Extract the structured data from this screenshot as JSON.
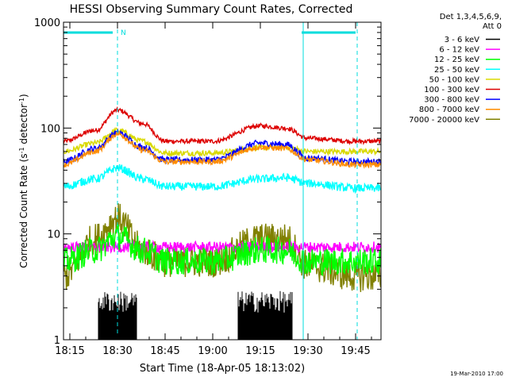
{
  "chart_data": {
    "type": "line",
    "title": "HESSI Observing Summary Count Rates, Corrected",
    "xlabel": "Start Time (18-Apr-05 18:13:02)",
    "ylabel_parts": [
      "Corrected Count Rate (s",
      "-1",
      " detector",
      "-1",
      ")"
    ],
    "yscale": "log",
    "ylim": [
      1,
      1000
    ],
    "xlim_minutes": [
      0,
      100
    ],
    "x_ticks": [
      {
        "label": "18:15",
        "min": 2
      },
      {
        "label": "18:30",
        "min": 17
      },
      {
        "label": "18:45",
        "min": 32
      },
      {
        "label": "19:00",
        "min": 47
      },
      {
        "label": "19:15",
        "min": 62
      },
      {
        "label": "19:30",
        "min": 77
      },
      {
        "label": "19:45",
        "min": 92
      }
    ],
    "y_ticks": [
      {
        "label": "1",
        "value": 1
      },
      {
        "label": "10",
        "value": 10
      },
      {
        "label": "100",
        "value": 100
      },
      {
        "label": "1000",
        "value": 1000
      }
    ],
    "legend_header": [
      "Det 1,3,4,5,6,9,",
      "Att 0"
    ],
    "legend_position": "right",
    "series": [
      {
        "name": "3 - 6 keV",
        "color": "#000000"
      },
      {
        "name": "6 - 12 keV",
        "color": "#ff00ff"
      },
      {
        "name": "12 - 25 keV",
        "color": "#00ff00"
      },
      {
        "name": "25 - 50 keV",
        "color": "#00ffff"
      },
      {
        "name": "50 - 100 keV",
        "color": "#d9d900"
      },
      {
        "name": "100 - 300 keV",
        "color": "#dd0000"
      },
      {
        "name": "300 - 800 keV",
        "color": "#0000ff"
      },
      {
        "name": "800 - 7000 keV",
        "color": "#ff8c00"
      },
      {
        "name": "7000 - 20000 keV",
        "color": "#808000"
      }
    ],
    "series_profiles": [
      {
        "name": "100 - 300 keV",
        "points": [
          [
            0,
            75
          ],
          [
            10,
            95
          ],
          [
            17,
            148
          ],
          [
            25,
            110
          ],
          [
            32,
            75
          ],
          [
            47,
            75
          ],
          [
            62,
            105
          ],
          [
            70,
            100
          ],
          [
            77,
            80
          ],
          [
            92,
            75
          ],
          [
            100,
            75
          ]
        ]
      },
      {
        "name": "50 - 100 keV",
        "points": [
          [
            0,
            60
          ],
          [
            10,
            72
          ],
          [
            17,
            95
          ],
          [
            25,
            75
          ],
          [
            32,
            58
          ],
          [
            47,
            58
          ],
          [
            62,
            65
          ],
          [
            70,
            66
          ],
          [
            77,
            60
          ],
          [
            92,
            60
          ],
          [
            100,
            60
          ]
        ]
      },
      {
        "name": "300 - 800 keV",
        "points": [
          [
            0,
            48
          ],
          [
            10,
            64
          ],
          [
            17,
            90
          ],
          [
            25,
            66
          ],
          [
            32,
            50
          ],
          [
            47,
            50
          ],
          [
            62,
            72
          ],
          [
            70,
            70
          ],
          [
            77,
            52
          ],
          [
            92,
            48
          ],
          [
            100,
            48
          ]
        ]
      },
      {
        "name": "800 - 7000 keV",
        "points": [
          [
            0,
            45
          ],
          [
            10,
            60
          ],
          [
            17,
            88
          ],
          [
            25,
            62
          ],
          [
            32,
            48
          ],
          [
            47,
            48
          ],
          [
            62,
            66
          ],
          [
            70,
            64
          ],
          [
            77,
            50
          ],
          [
            92,
            45
          ],
          [
            100,
            45
          ]
        ]
      },
      {
        "name": "25 - 50 keV",
        "points": [
          [
            0,
            28
          ],
          [
            10,
            33
          ],
          [
            17,
            42
          ],
          [
            25,
            33
          ],
          [
            32,
            28
          ],
          [
            47,
            28
          ],
          [
            62,
            33
          ],
          [
            70,
            34
          ],
          [
            77,
            30
          ],
          [
            92,
            27
          ],
          [
            100,
            27
          ]
        ]
      },
      {
        "name": "7000 - 20000 keV",
        "points": [
          [
            0,
            4
          ],
          [
            10,
            9
          ],
          [
            17,
            14
          ],
          [
            25,
            7
          ],
          [
            32,
            5.5
          ],
          [
            47,
            5.5
          ],
          [
            62,
            9
          ],
          [
            70,
            9
          ],
          [
            77,
            5
          ],
          [
            92,
            4
          ],
          [
            100,
            4
          ]
        ]
      },
      {
        "name": "6 - 12 keV",
        "points": [
          [
            0,
            7.5
          ],
          [
            100,
            7.5
          ]
        ]
      },
      {
        "name": "12 - 25 keV",
        "points": [
          [
            0,
            5.5
          ],
          [
            10,
            7
          ],
          [
            17,
            9.5
          ],
          [
            25,
            7
          ],
          [
            32,
            5.5
          ],
          [
            47,
            5.5
          ],
          [
            62,
            7
          ],
          [
            70,
            7
          ],
          [
            77,
            5.5
          ],
          [
            92,
            5.5
          ],
          [
            100,
            5.5
          ]
        ]
      },
      {
        "name": "3 - 6 keV",
        "segments": [
          [
            [
              11,
              1.8
            ],
            [
              23,
              1.8
            ]
          ],
          [
            [
              55,
              1.8
            ],
            [
              72,
              1.8
            ]
          ]
        ]
      }
    ],
    "observing_bars": [
      {
        "label": "",
        "start_min": 0,
        "end_min": 15.5
      },
      {
        "label": "",
        "start_min": 75,
        "end_min": 92
      }
    ],
    "observing_marker": "N",
    "vertical_lines": [
      {
        "min": 0,
        "style": "solid"
      },
      {
        "min": 17,
        "style": "dashed"
      },
      {
        "min": 75.5,
        "style": "solid"
      },
      {
        "min": 92.5,
        "style": "dashed"
      }
    ],
    "footer_timestamp": "19-Mar-2010 17:00"
  }
}
